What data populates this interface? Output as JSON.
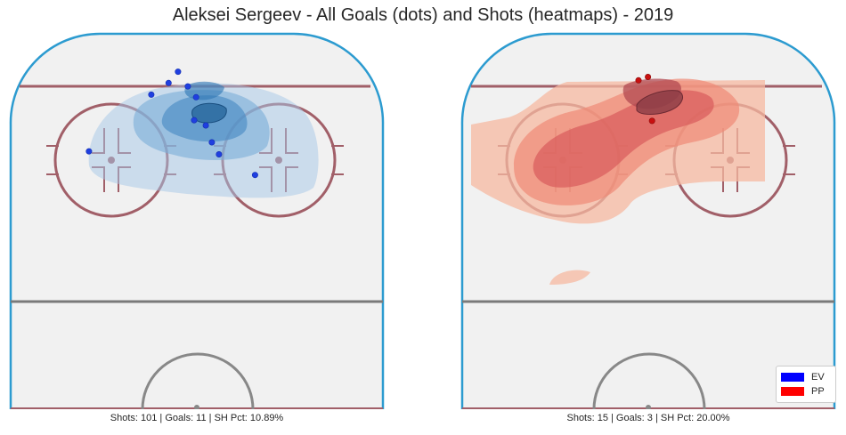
{
  "title": "Aleksei Sergeev - All Goals (dots) and Shots (heatmaps) - 2019",
  "colors": {
    "ev": "#0000ff",
    "pp": "#ff0000"
  },
  "chart_data": [
    {
      "type": "scatter",
      "panel": "EV",
      "heatmap": "blues",
      "caption": "Shots: 101 | Goals: 11 | SH Pct: 10.89%",
      "shots": 101,
      "goals": 11,
      "sh_pct": "10.89%",
      "goal_points": [
        {
          "x": 37.9,
          "y": 83.8
        },
        {
          "x": 42.5,
          "y": 86.9
        },
        {
          "x": 45.0,
          "y": 89.9
        },
        {
          "x": 47.6,
          "y": 86.0
        },
        {
          "x": 49.3,
          "y": 77.0
        },
        {
          "x": 49.8,
          "y": 83.1
        },
        {
          "x": 52.4,
          "y": 75.6
        },
        {
          "x": 54.0,
          "y": 71.1
        },
        {
          "x": 55.9,
          "y": 67.9
        },
        {
          "x": 21.3,
          "y": 68.7
        },
        {
          "x": 65.5,
          "y": 62.4
        }
      ]
    },
    {
      "type": "scatter",
      "panel": "PP",
      "heatmap": "reds",
      "caption": "Shots: 15 | Goals: 3 | SH Pct: 20.00%",
      "shots": 15,
      "goals": 3,
      "sh_pct": "20.00%",
      "goal_points": [
        {
          "x": 47.4,
          "y": 87.6
        },
        {
          "x": 49.9,
          "y": 88.5
        },
        {
          "x": 51.0,
          "y": 76.8
        }
      ]
    }
  ],
  "legend": {
    "items": [
      {
        "label": "EV",
        "color": "#0000ff"
      },
      {
        "label": "PP",
        "color": "#ff0000"
      }
    ]
  }
}
